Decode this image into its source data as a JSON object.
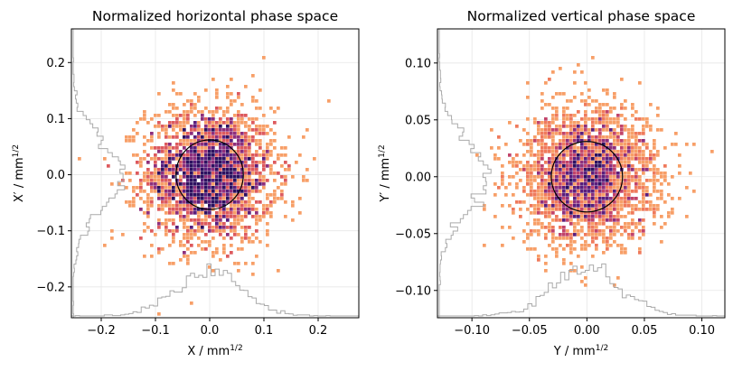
{
  "chart_data": [
    {
      "type": "scatter",
      "title": "Normalized horizontal phase space",
      "xlabel": "X / mm",
      "ylabel": "X′ / mm",
      "unit_exponent": "1/2",
      "xlim": [
        -0.255,
        0.275
      ],
      "ylim": [
        -0.255,
        0.26
      ],
      "xticks": [
        -0.2,
        -0.1,
        0.0,
        0.1,
        0.2
      ],
      "xtick_labels": [
        "−0.2",
        "−0.1",
        "0.0",
        "0.1",
        "0.2"
      ],
      "yticks": [
        -0.2,
        -0.1,
        0.0,
        0.1,
        0.2
      ],
      "ytick_labels": [
        "−0.2",
        "−0.1",
        "0.0",
        "0.1",
        "0.2"
      ],
      "grid": true,
      "distribution": {
        "center": [
          0.0,
          0.0
        ],
        "sigma": [
          0.06,
          0.06
        ],
        "points": 2600
      },
      "ellipse": {
        "center": [
          0.0,
          0.0
        ],
        "radius": [
          0.062,
          0.062
        ]
      },
      "colormap": "magma_r"
    },
    {
      "type": "scatter",
      "title": "Normalized vertical phase space",
      "xlabel": "Y / mm",
      "ylabel": "Y′ / mm",
      "unit_exponent": "1/2",
      "xlim": [
        -0.13,
        0.12
      ],
      "ylim": [
        -0.124,
        0.13
      ],
      "xticks": [
        -0.1,
        -0.05,
        0.0,
        0.05,
        0.1
      ],
      "xtick_labels": [
        "−0.10",
        "−0.05",
        "0.00",
        "0.05",
        "0.10"
      ],
      "yticks": [
        -0.1,
        -0.05,
        0.0,
        0.05,
        0.1
      ],
      "ytick_labels": [
        "−0.10",
        "−0.05",
        "0.00",
        "0.05",
        "0.10"
      ],
      "grid": true,
      "distribution": {
        "center": [
          0.0,
          0.0
        ],
        "sigma": [
          0.03,
          0.03
        ],
        "points": 2600
      },
      "ellipse": {
        "center": [
          0.0,
          0.0
        ],
        "radius": [
          0.031,
          0.031
        ]
      },
      "colormap": "magma_r"
    }
  ]
}
